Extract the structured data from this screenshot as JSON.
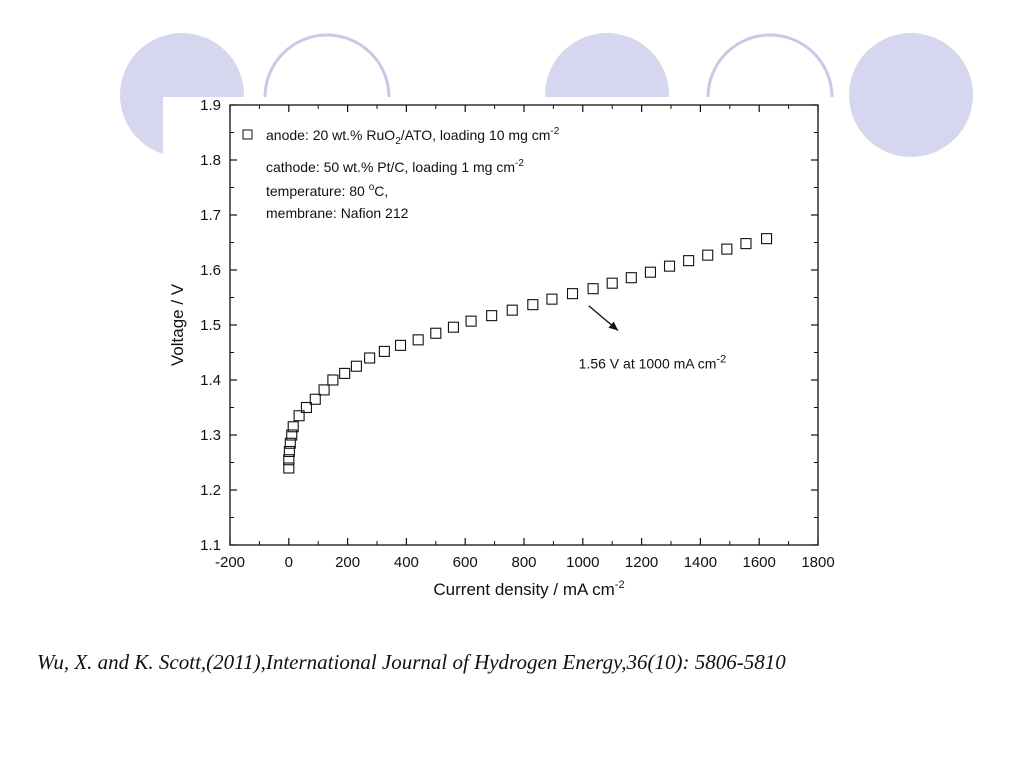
{
  "theme": {
    "accent": "#d6d6ef",
    "ring": "#c9c9e6"
  },
  "citation": "Wu, X. and K. Scott,(2011),International Journal of Hydrogen Energy,36(10): 5806-5810",
  "chart_data": {
    "type": "scatter",
    "marker": "open-square",
    "title": "",
    "xlabel": {
      "main": "Current density / mA cm",
      "sup": "-2"
    },
    "ylabel": "Voltage / V",
    "xlim": [
      -200,
      1800
    ],
    "ylim": [
      1.1,
      1.9
    ],
    "xticks": [
      -200,
      0,
      200,
      400,
      600,
      800,
      1000,
      1200,
      1400,
      1600,
      1800
    ],
    "yticks": [
      1.1,
      1.2,
      1.3,
      1.4,
      1.5,
      1.6,
      1.7,
      1.8,
      1.9
    ],
    "grid": false,
    "legend": {
      "position": "top-left",
      "lines": [
        {
          "parts": [
            {
              "t": "anode: 20 wt.% RuO"
            },
            {
              "t": "2",
              "s": "sub"
            },
            {
              "t": "/ATO, loading 10 mg cm"
            },
            {
              "t": "-2",
              "s": "sup"
            }
          ]
        },
        {
          "parts": [
            {
              "t": "cathode: 50 wt.% Pt/C, loading 1 mg cm"
            },
            {
              "t": "-2",
              "s": "sup"
            }
          ]
        },
        {
          "parts": [
            {
              "t": "temperature: 80 "
            },
            {
              "t": "o",
              "s": "sup"
            },
            {
              "t": "C,"
            }
          ]
        },
        {
          "parts": [
            {
              "t": "membrane: Nafion 212"
            }
          ]
        }
      ]
    },
    "annotation": {
      "parts": [
        {
          "t": "1.56 V at 1000 mA cm"
        },
        {
          "t": "-2",
          "s": "sup"
        }
      ],
      "arrow_from": [
        1020,
        1.535
      ],
      "arrow_to": [
        1120,
        1.49
      ],
      "text_at": [
        1020,
        1.43
      ]
    },
    "series": [
      {
        "x": [
          0,
          0,
          2,
          5,
          10,
          15,
          35,
          60,
          90,
          120,
          150,
          190,
          230,
          275,
          325,
          380,
          440,
          500,
          560,
          620,
          690,
          760,
          830,
          895,
          965,
          1035,
          1100,
          1165,
          1230,
          1295,
          1360,
          1425,
          1490,
          1555,
          1625
        ],
        "y": [
          1.24,
          1.255,
          1.27,
          1.285,
          1.3,
          1.315,
          1.335,
          1.35,
          1.365,
          1.382,
          1.4,
          1.412,
          1.425,
          1.44,
          1.452,
          1.463,
          1.473,
          1.485,
          1.496,
          1.507,
          1.517,
          1.527,
          1.537,
          1.547,
          1.557,
          1.566,
          1.576,
          1.586,
          1.596,
          1.607,
          1.617,
          1.627,
          1.638,
          1.648,
          1.657
        ]
      }
    ]
  }
}
